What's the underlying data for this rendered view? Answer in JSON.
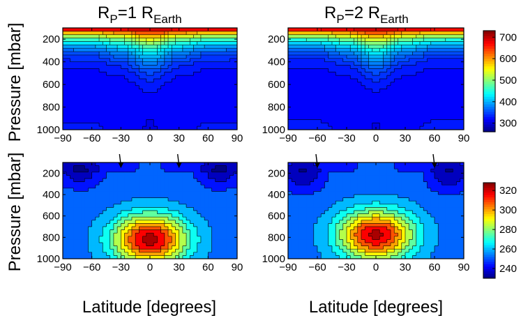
{
  "chart_data": [
    {
      "type": "contour",
      "title": "R_P=1 R_Earth",
      "title_parts": {
        "r": "R",
        "p": "P",
        "eq": "=1 R",
        "earth": "Earth"
      },
      "xlabel": "",
      "ylabel": "Pressure [mbar]",
      "xlim": [
        -90,
        90
      ],
      "ylim": [
        1000,
        100
      ],
      "x_ticks": [
        "−90",
        "−60",
        "−30",
        "0",
        "30",
        "60",
        "90"
      ],
      "y_ticks": [
        "200",
        "400",
        "600",
        "800",
        "1000"
      ],
      "colorscale": "upper",
      "profile": [
        {
          "lat": -90,
          "depth": 0.35
        },
        {
          "lat": -60,
          "depth": 0.36
        },
        {
          "lat": -30,
          "depth": 0.48
        },
        {
          "lat": 0,
          "depth": 0.8
        },
        {
          "lat": 30,
          "depth": 0.48
        },
        {
          "lat": 60,
          "depth": 0.36
        },
        {
          "lat": 90,
          "depth": 0.35
        }
      ]
    },
    {
      "type": "contour",
      "title": "R_P=2 R_Earth",
      "title_parts": {
        "r": "R",
        "p": "P",
        "eq": "=2 R",
        "earth": "Earth"
      },
      "xlabel": "",
      "ylabel": "",
      "xlim": [
        -90,
        90
      ],
      "ylim": [
        1000,
        100
      ],
      "x_ticks": [
        "−90",
        "−60",
        "−30",
        "0",
        "30",
        "60",
        "90"
      ],
      "y_ticks": [
        "200",
        "400",
        "600",
        "800",
        "1000"
      ],
      "colorscale": "upper",
      "profile": [
        {
          "lat": -90,
          "depth": 0.33
        },
        {
          "lat": -60,
          "depth": 0.34
        },
        {
          "lat": -30,
          "depth": 0.46
        },
        {
          "lat": 0,
          "depth": 0.78
        },
        {
          "lat": 30,
          "depth": 0.46
        },
        {
          "lat": 60,
          "depth": 0.34
        },
        {
          "lat": 90,
          "depth": 0.33
        }
      ]
    },
    {
      "type": "contour",
      "title": "",
      "xlabel": "Latitude [degrees]",
      "ylabel": "Pressure [mbar]",
      "xlim": [
        -90,
        90
      ],
      "ylim": [
        1000,
        100
      ],
      "x_ticks": [
        "−90",
        "−60",
        "−30",
        "0",
        "30",
        "60",
        "90"
      ],
      "y_ticks": [
        "200",
        "400",
        "600",
        "800",
        "1000"
      ],
      "colorscale": "lower",
      "hot_center": {
        "lat": 0,
        "pressure": 820,
        "t_max": 322
      },
      "cold_poles": {
        "lat": 72,
        "pressure": 180,
        "t_min": 236
      },
      "arrows_lat": [
        -30,
        30
      ]
    },
    {
      "type": "contour",
      "title": "",
      "xlabel": "Latitude [degrees]",
      "ylabel": "",
      "xlim": [
        -90,
        90
      ],
      "ylim": [
        1000,
        100
      ],
      "x_ticks": [
        "−90",
        "−60",
        "−30",
        "0",
        "30",
        "60",
        "90"
      ],
      "y_ticks": [
        "200",
        "400",
        "600",
        "800",
        "1000"
      ],
      "colorscale": "lower",
      "hot_center": {
        "lat": 0,
        "pressure": 780,
        "t_max": 320
      },
      "cold_poles": {
        "lat": 75,
        "pressure": 220,
        "t_min": 236
      },
      "arrows_lat": [
        -60,
        60
      ]
    }
  ],
  "colorbars": {
    "upper": {
      "ticks": [
        "700",
        "600",
        "500",
        "400",
        "300"
      ],
      "values": [
        700,
        600,
        500,
        400,
        300
      ],
      "range": [
        260,
        730
      ]
    },
    "lower": {
      "ticks": [
        "320",
        "300",
        "280",
        "260",
        "240"
      ],
      "values": [
        320,
        300,
        280,
        260,
        240
      ],
      "range": [
        230,
        328
      ]
    }
  }
}
